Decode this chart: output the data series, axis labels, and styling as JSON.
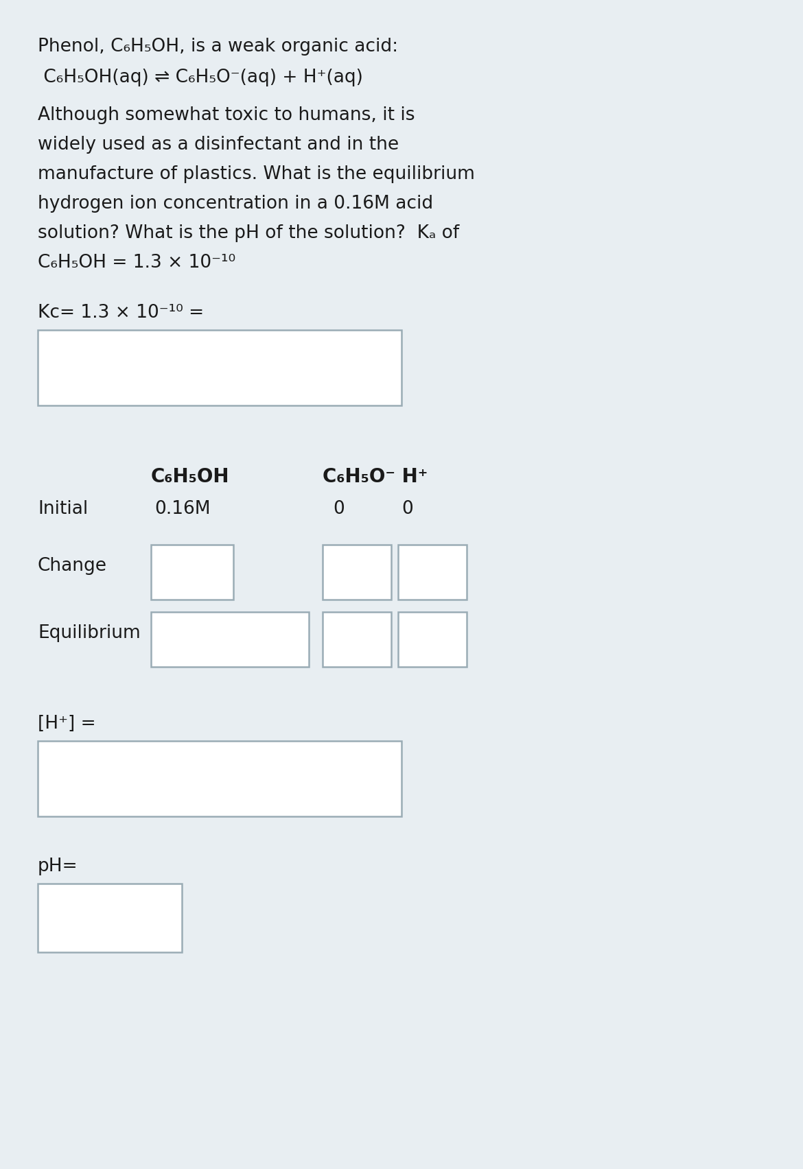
{
  "bg_color": "#e8eef2",
  "text_color": "#1a1a1a",
  "box_facecolor": "#ffffff",
  "box_edgecolor": "#9aacb5",
  "font_size": 19,
  "bold_size": 20,
  "line1": "Phenol, C₆H₅OH, is a weak organic acid:",
  "line2": " C₆H₅OH(aq) ⇌ C₆H₅O⁻(aq) + H⁺(aq)",
  "para_lines": [
    "Although somewhat toxic to humans, it is",
    "widely used as a disinfectant and in the",
    "manufacture of plastics. What is the equilibrium",
    "hydrogen ion concentration in a 0.16M acid",
    "solution? What is the pH of the solution?  Kₐ of",
    "C₆H₅OH = 1.3 × 10⁻¹⁰"
  ],
  "kc_line": "Kc= 1.3 × 10⁻¹⁰ =",
  "col1_header": "C₆H₅OH",
  "col2_header": "C₆H₅O⁻ H⁺",
  "row_initial": "Initial",
  "row_change": "Change",
  "row_equil": "Equilibrium",
  "init_val1": "0.16M",
  "init_val2": "0",
  "init_val3": "0",
  "h_plus_label": "[H⁺] =",
  "ph_label": "pH="
}
